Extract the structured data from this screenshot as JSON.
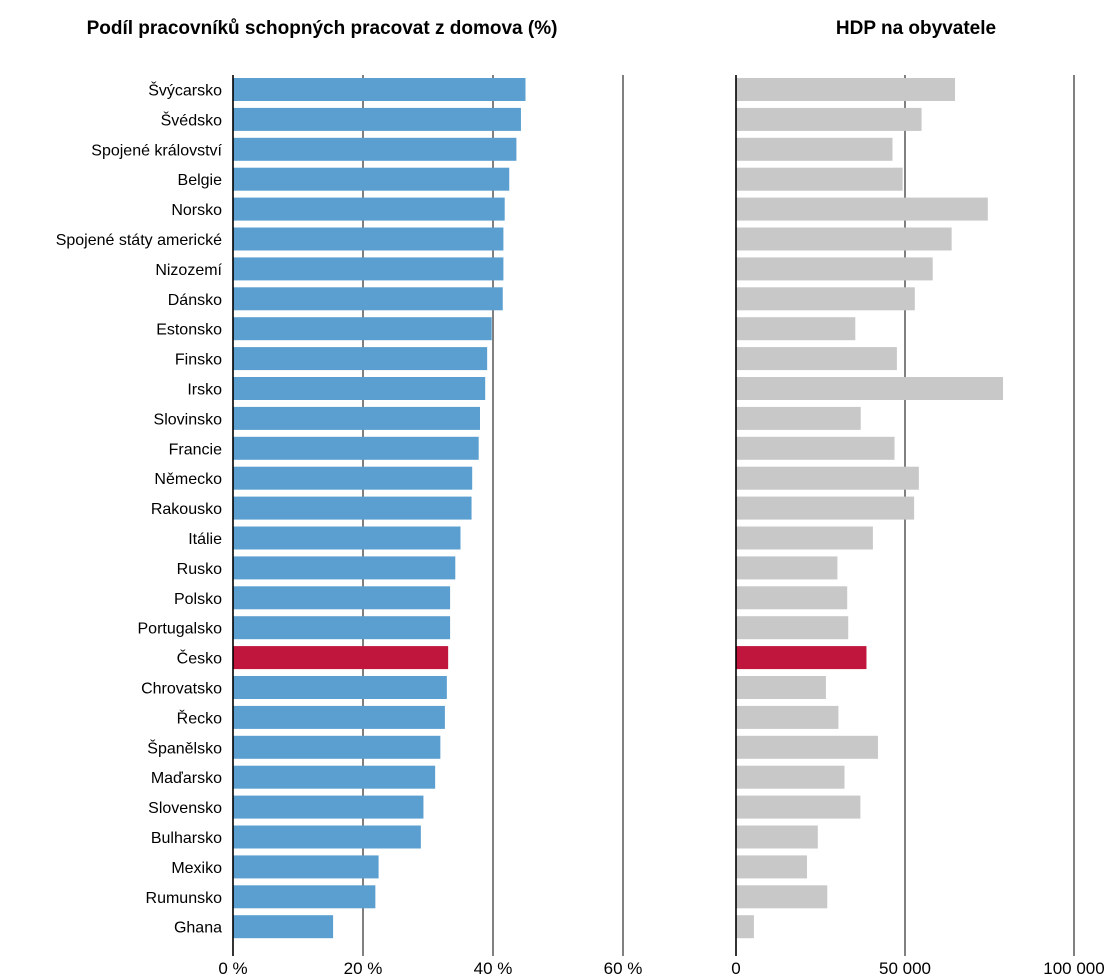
{
  "chart_data": [
    {
      "type": "bar",
      "orientation": "horizontal",
      "title": "Podíl pracovníků schopných pracovat z domova (%)",
      "categories": [
        "Švýcarsko",
        "Švédsko",
        "Spojené království",
        "Belgie",
        "Norsko",
        "Spojené státy americké",
        "Nizozemí",
        "Dánsko",
        "Estonsko",
        "Finsko",
        "Irsko",
        "Slovinsko",
        "Francie",
        "Německo",
        "Rakousko",
        "Itálie",
        "Rusko",
        "Polsko",
        "Portugalsko",
        "Česko",
        "Chrovatsko",
        "Řecko",
        "Španělsko",
        "Maďarsko",
        "Slovensko",
        "Bulharsko",
        "Mexiko",
        "Rumunsko",
        "Ghana"
      ],
      "values": [
        45,
        44.3,
        43.6,
        42.5,
        41.8,
        41.6,
        41.6,
        41.5,
        39.8,
        39.1,
        38.8,
        38,
        37.8,
        36.8,
        36.7,
        35,
        34.2,
        33.4,
        33.4,
        33.1,
        32.9,
        32.6,
        31.9,
        31.1,
        29.3,
        28.9,
        22.4,
        21.9,
        15.4
      ],
      "highlight": "Česko",
      "colors": {
        "default": "#5B9FD0",
        "highlight": "#C0163E"
      },
      "xlim": [
        0,
        60
      ],
      "xticks": [
        0,
        20,
        40,
        60
      ],
      "xtick_labels": [
        "0 %",
        "20 %",
        "40 %",
        "60 %"
      ],
      "grid": "vertical"
    },
    {
      "type": "bar",
      "orientation": "horizontal",
      "title": "HDP na obyvatele",
      "categories": [
        "Švýcarsko",
        "Švédsko",
        "Spojené království",
        "Belgie",
        "Norsko",
        "Spojené státy americké",
        "Nizozemí",
        "Dánsko",
        "Estonsko",
        "Finsko",
        "Irsko",
        "Slovinsko",
        "Francie",
        "Německo",
        "Rakousko",
        "Itálie",
        "Rusko",
        "Polsko",
        "Portugalsko",
        "Česko",
        "Chrovatsko",
        "Řecko",
        "Španělsko",
        "Maďarsko",
        "Slovensko",
        "Bulharsko",
        "Mexiko",
        "Rumunsko",
        "Ghana"
      ],
      "values": [
        64800,
        54900,
        46300,
        49300,
        74500,
        63800,
        58200,
        52900,
        35300,
        47600,
        79000,
        36900,
        46900,
        54100,
        52700,
        40500,
        30000,
        32900,
        33200,
        38600,
        26600,
        30300,
        42000,
        32100,
        36800,
        24200,
        21000,
        27000,
        5300
      ],
      "highlight": "Česko",
      "colors": {
        "default": "#C8C8C8",
        "highlight": "#C0163E"
      },
      "xlim": [
        0,
        100000
      ],
      "xticks": [
        0,
        50000,
        100000
      ],
      "xtick_labels": [
        "0",
        "50 000",
        "100 000"
      ],
      "grid": "vertical"
    }
  ]
}
